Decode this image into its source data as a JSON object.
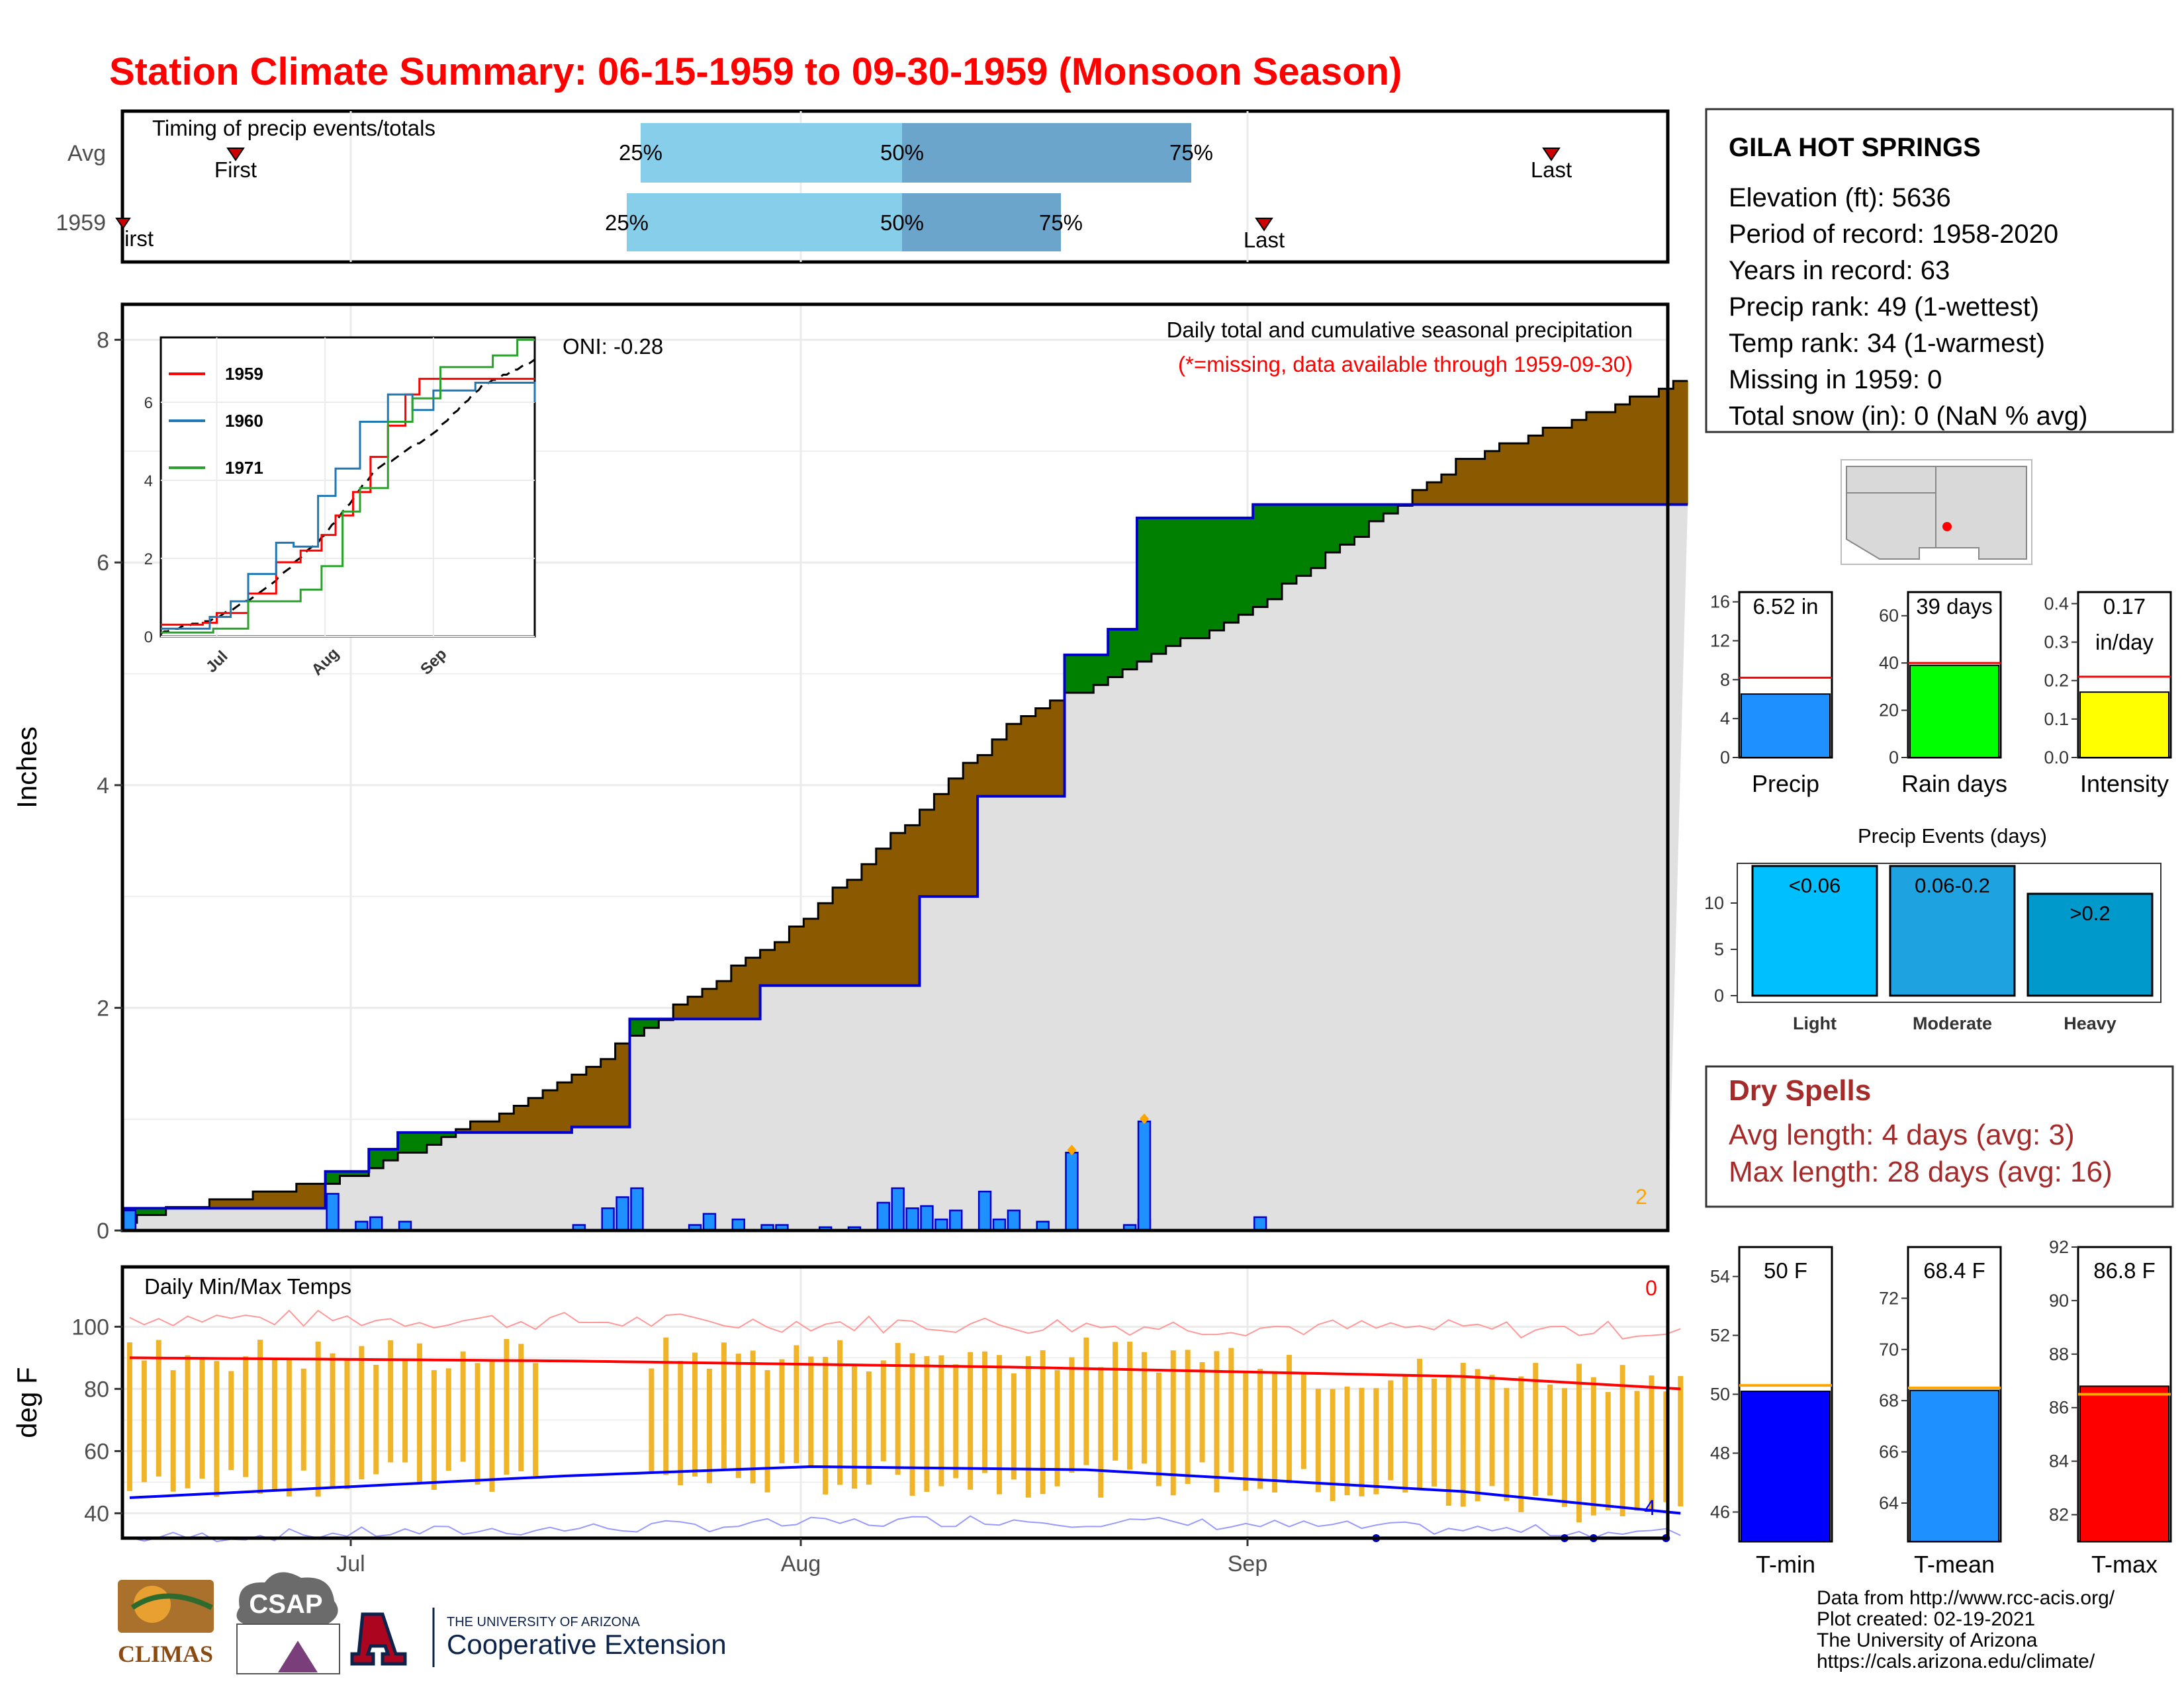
{
  "title": "Station Climate Summary: 06-15-1959 to 09-30-1959 (Monsoon Season)",
  "colors": {
    "title": "#ff0000",
    "q1": "#87ceeb",
    "q2": "#6ba5cc",
    "blue_bar": "#1e90ff",
    "green": "#008000",
    "brown": "#8b5a00",
    "gray": "#e0e0e0",
    "tmin": "#0000ff",
    "tmax": "#ff0000",
    "avgline": "#ffa500",
    "tbar": "#f0b429"
  },
  "timing": {
    "label": "Timing of precip events/totals",
    "rows": [
      {
        "name": "Avg",
        "q25": "25%",
        "q50": "50%",
        "q75": "75%",
        "first": "First",
        "last": "Last"
      },
      {
        "name": "1959",
        "q25": "25%",
        "q50": "50%",
        "q75": "75%",
        "first": "First",
        "last": "Last"
      }
    ]
  },
  "month_ticks": [
    "Jul",
    "Aug",
    "Sep"
  ],
  "precip_panel": {
    "ylabel": "Inches",
    "yticks": [
      "0",
      "2",
      "4",
      "6",
      "8"
    ],
    "heading": "Daily total and cumulative seasonal precipitation",
    "missing_note": "(*=missing, data available through 1959-09-30)",
    "oni": "ONI: -0.28",
    "corner_count": "2"
  },
  "inset": {
    "yticks": [
      "0",
      "2",
      "4",
      "6"
    ],
    "xticks": [
      "Jul",
      "Aug",
      "Sep"
    ],
    "legend": [
      {
        "name": "1959",
        "color": "#ff0000"
      },
      {
        "name": "1960",
        "color": "#1f77b4"
      },
      {
        "name": "1971",
        "color": "#2ca02c"
      }
    ]
  },
  "temp_panel": {
    "ylabel": "deg F",
    "label": "Daily Min/Max Temps",
    "yticks": [
      "40",
      "60",
      "80",
      "100"
    ],
    "count_hot": "0",
    "count_cold": "4"
  },
  "station": {
    "name": "GILA HOT SPRINGS",
    "lines": [
      "Elevation (ft): 5636",
      "Period of record: 1958-2020",
      "Years in record: 63",
      "Precip rank: 49 (1-wettest)",
      "Temp rank: 34 (1-warmest)",
      "Missing in 1959: 0",
      "Total snow (in): 0 (NaN % avg)"
    ]
  },
  "mini_bars": [
    {
      "label": "Precip",
      "value_text": "6.52 in",
      "value": 6.52,
      "avg": 8.2,
      "max": 17,
      "ticks": [
        "0",
        "4",
        "8",
        "12",
        "16"
      ],
      "color": "#1e90ff"
    },
    {
      "label": "Rain days",
      "value_text": "39 days",
      "value": 39,
      "avg": 40,
      "max": 70,
      "ticks": [
        "0",
        "20",
        "40",
        "60"
      ],
      "color": "#00ff00"
    },
    {
      "label": "Intensity",
      "value_text": "0.17",
      "value_text2": "in/day",
      "value": 0.17,
      "avg": 0.21,
      "max": 0.43,
      "ticks": [
        "0.0",
        "0.1",
        "0.2",
        "0.3",
        "0.4"
      ],
      "color": "#ffff00"
    }
  ],
  "events": {
    "title": "Precip Events (days)",
    "ticks": [
      "0",
      "5",
      "10"
    ],
    "bars": [
      {
        "cat": "Light",
        "label": "<0.06",
        "value": 14,
        "color": "#00bfff"
      },
      {
        "cat": "Moderate",
        "label": "0.06-0.2",
        "value": 14,
        "color": "#1ea3e0"
      },
      {
        "cat": "Heavy",
        "label": ">0.2",
        "value": 11,
        "color": "#0099cc"
      }
    ]
  },
  "dry_spells": {
    "title": "Dry Spells",
    "avg": "Avg length: 4 days (avg: 3)",
    "max": "Max length: 28 days (avg: 16)"
  },
  "temp_bars": [
    {
      "label": "T-min",
      "value_text": "50 F",
      "value": 50.1,
      "avg": 50.3,
      "min": 45,
      "max": 55,
      "ticks": [
        "46",
        "48",
        "50",
        "52",
        "54"
      ],
      "color": "#0000ff"
    },
    {
      "label": "T-mean",
      "value_text": "68.4 F",
      "value": 68.4,
      "avg": 68.5,
      "min": 62.5,
      "max": 74,
      "ticks": [
        "64",
        "66",
        "68",
        "70",
        "72"
      ],
      "color": "#1e90ff"
    },
    {
      "label": "T-max",
      "value_text": "86.8 F",
      "value": 86.8,
      "avg": 86.5,
      "min": 81,
      "max": 92,
      "ticks": [
        "82",
        "84",
        "86",
        "88",
        "90",
        "92"
      ],
      "color": "#ff0000"
    }
  ],
  "footer": {
    "lines": [
      "Data from http://www.rcc-acis.org/",
      "Plot created: 02-19-2021",
      "The University of Arizona",
      "https://cals.arizona.edu/climate/"
    ]
  },
  "logos": {
    "climas": "CLIMAS",
    "csap": "CSAP",
    "ua_small": "THE UNIVERSITY OF ARIZONA",
    "ua_big": "Cooperative Extension"
  },
  "chart_data": {
    "type": "bar",
    "title": "Daily total and cumulative seasonal precipitation",
    "ylabel": "Inches",
    "ylim": [
      0,
      8.4
    ],
    "x_range": [
      "1959-06-15",
      "1959-09-30"
    ],
    "daily_precip": [
      [
        "1959-06-15",
        0.18
      ],
      [
        "1959-06-29",
        0.33
      ],
      [
        "1959-07-01",
        0.08
      ],
      [
        "1959-07-02",
        0.12
      ],
      [
        "1959-07-04",
        0.08
      ],
      [
        "1959-07-16",
        0.05
      ],
      [
        "1959-07-18",
        0.2
      ],
      [
        "1959-07-19",
        0.3
      ],
      [
        "1959-07-20",
        0.38
      ],
      [
        "1959-07-24",
        0.05
      ],
      [
        "1959-07-25",
        0.15
      ],
      [
        "1959-07-27",
        0.1
      ],
      [
        "1959-07-29",
        0.05
      ],
      [
        "1959-07-30",
        0.05
      ],
      [
        "1959-08-02",
        0.03
      ],
      [
        "1959-08-04",
        0.03
      ],
      [
        "1959-08-06",
        0.25
      ],
      [
        "1959-08-07",
        0.38
      ],
      [
        "1959-08-08",
        0.2
      ],
      [
        "1959-08-09",
        0.22
      ],
      [
        "1959-08-10",
        0.1
      ],
      [
        "1959-08-11",
        0.18
      ],
      [
        "1959-08-13",
        0.35
      ],
      [
        "1959-08-14",
        0.1
      ],
      [
        "1959-08-15",
        0.18
      ],
      [
        "1959-08-17",
        0.08
      ],
      [
        "1959-08-19",
        0.7
      ],
      [
        "1959-08-23",
        0.05
      ],
      [
        "1959-08-24",
        0.1
      ],
      [
        "1959-08-24",
        0.98
      ],
      [
        "1959-09-01",
        0.12
      ]
    ],
    "cumulative_1959": [
      [
        "1959-06-15",
        0.2
      ],
      [
        "1959-06-29",
        0.53
      ],
      [
        "1959-07-02",
        0.73
      ],
      [
        "1959-07-04",
        0.88
      ],
      [
        "1959-07-16",
        0.93
      ],
      [
        "1959-07-20",
        1.9
      ],
      [
        "1959-07-29",
        2.2
      ],
      [
        "1959-08-09",
        3.0
      ],
      [
        "1959-08-13",
        3.9
      ],
      [
        "1959-08-19",
        5.17
      ],
      [
        "1959-08-22",
        5.4
      ],
      [
        "1959-08-24",
        6.4
      ],
      [
        "1959-09-01",
        6.52
      ],
      [
        "1959-09-30",
        6.52
      ]
    ],
    "cumulative_avg": [
      [
        "1959-06-15",
        0.1
      ],
      [
        "1959-07-01",
        0.5
      ],
      [
        "1959-07-15",
        1.3
      ],
      [
        "1959-08-01",
        2.8
      ],
      [
        "1959-08-15",
        4.55
      ],
      [
        "1959-09-01",
        5.6
      ],
      [
        "1959-09-15",
        6.9
      ],
      [
        "1959-09-30",
        7.6
      ]
    ],
    "temp_max_daily_range": [
      85,
      98
    ],
    "temp_min_daily_range": [
      33,
      58
    ],
    "tmax_avg_line": [
      [
        "1959-06-15",
        90
      ],
      [
        "1959-07-15",
        89
      ],
      [
        "1959-08-15",
        87
      ],
      [
        "1959-09-15",
        84
      ],
      [
        "1959-09-30",
        80
      ]
    ],
    "tmin_avg_line": [
      [
        "1959-06-15",
        45
      ],
      [
        "1959-07-15",
        52
      ],
      [
        "1959-08-01",
        55
      ],
      [
        "1959-08-20",
        54
      ],
      [
        "1959-09-15",
        47
      ],
      [
        "1959-09-30",
        40
      ]
    ]
  }
}
